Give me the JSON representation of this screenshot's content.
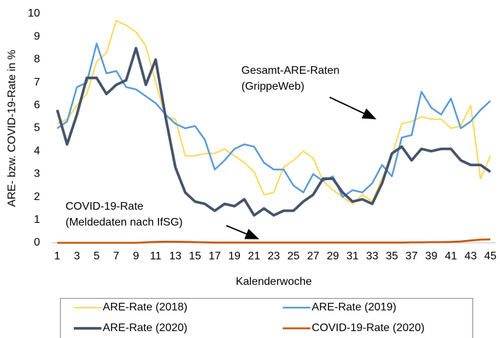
{
  "chart_data": {
    "type": "line",
    "y_label": "ARE- bzw. COVID-19-Rate in %",
    "x_label": "Kalenderwoche",
    "categories": [
      "1",
      null,
      "3",
      null,
      "5",
      null,
      "7",
      null,
      "9",
      null,
      "11",
      null,
      "13",
      null,
      "15",
      null,
      "17",
      null,
      "19",
      null,
      "21",
      null,
      "23",
      null,
      "25",
      null,
      "27",
      null,
      "29",
      null,
      "31",
      null,
      "33",
      null,
      "35",
      null,
      "37",
      null,
      "39",
      null,
      "41",
      null,
      "43",
      null,
      "45"
    ],
    "ylim": [
      0,
      10
    ],
    "yticks": [
      0,
      1,
      2,
      3,
      4,
      5,
      6,
      7,
      8,
      9,
      10
    ],
    "grid": false,
    "series": [
      {
        "name": "ARE-Rate (2018)",
        "color": "#FFD966",
        "values": [
          5.2,
          5.4,
          6.0,
          6.5,
          7.9,
          8.3,
          9.7,
          9.5,
          9.2,
          8.6,
          7.0,
          5.5,
          5.4,
          3.8,
          3.8,
          3.9,
          3.9,
          4.1,
          3.8,
          3.5,
          3.1,
          2.1,
          2.2,
          3.3,
          3.6,
          4.0,
          3.7,
          2.7,
          2.3,
          2.0,
          1.7,
          2.1,
          1.8,
          2.8,
          3.8,
          5.2,
          5.3,
          5.5,
          5.4,
          5.4,
          5.0,
          5.1,
          6.0,
          2.8,
          3.8
        ]
      },
      {
        "name": "ARE-Rate (2019)",
        "color": "#5B9BD5",
        "values": [
          5.0,
          5.3,
          6.8,
          7.0,
          8.7,
          7.4,
          7.5,
          6.8,
          6.7,
          6.4,
          6.1,
          5.6,
          5.2,
          5.0,
          5.1,
          4.5,
          3.2,
          3.6,
          4.1,
          4.3,
          4.2,
          3.5,
          3.2,
          3.2,
          2.5,
          2.2,
          3.0,
          2.7,
          2.9,
          2.0,
          2.3,
          2.2,
          2.6,
          3.4,
          2.9,
          4.6,
          4.7,
          6.6,
          5.9,
          5.6,
          6.3,
          5.0,
          5.3,
          5.8,
          6.2
        ]
      },
      {
        "name": "ARE-Rate (2020)",
        "color": "#44546A",
        "values": [
          5.8,
          4.3,
          5.6,
          7.2,
          7.2,
          6.5,
          6.9,
          7.1,
          8.5,
          6.9,
          8.0,
          5.5,
          3.3,
          2.2,
          1.8,
          1.7,
          1.4,
          1.7,
          1.6,
          1.9,
          1.2,
          1.5,
          1.2,
          1.4,
          1.4,
          1.8,
          2.1,
          2.8,
          2.8,
          2.2,
          1.8,
          1.9,
          1.7,
          2.6,
          3.9,
          4.2,
          3.6,
          4.1,
          4.0,
          4.1,
          4.1,
          3.6,
          3.4,
          3.4,
          3.1
        ]
      },
      {
        "name": "COVID-19-Rate (2020)",
        "color": "#C55A11",
        "values": [
          0,
          0,
          0,
          0,
          0,
          0,
          0,
          0,
          0,
          0.02,
          0.04,
          0.05,
          0.05,
          0.04,
          0.03,
          0.02,
          0.01,
          0.01,
          0.01,
          0.01,
          0.01,
          0.01,
          0.01,
          0.01,
          0.01,
          0.01,
          0.01,
          0.01,
          0.01,
          0.01,
          0.01,
          0.01,
          0.01,
          0.01,
          0.01,
          0.01,
          0.02,
          0.02,
          0.03,
          0.03,
          0.04,
          0.06,
          0.1,
          0.14,
          0.15
        ]
      }
    ],
    "annotations": [
      {
        "lines": [
          "Gesamt-ARE-Raten",
          "(GrippeWeb)"
        ]
      },
      {
        "lines": [
          "COVID-19-Rate",
          "(Meldedaten nach IfSG)"
        ]
      }
    ]
  }
}
